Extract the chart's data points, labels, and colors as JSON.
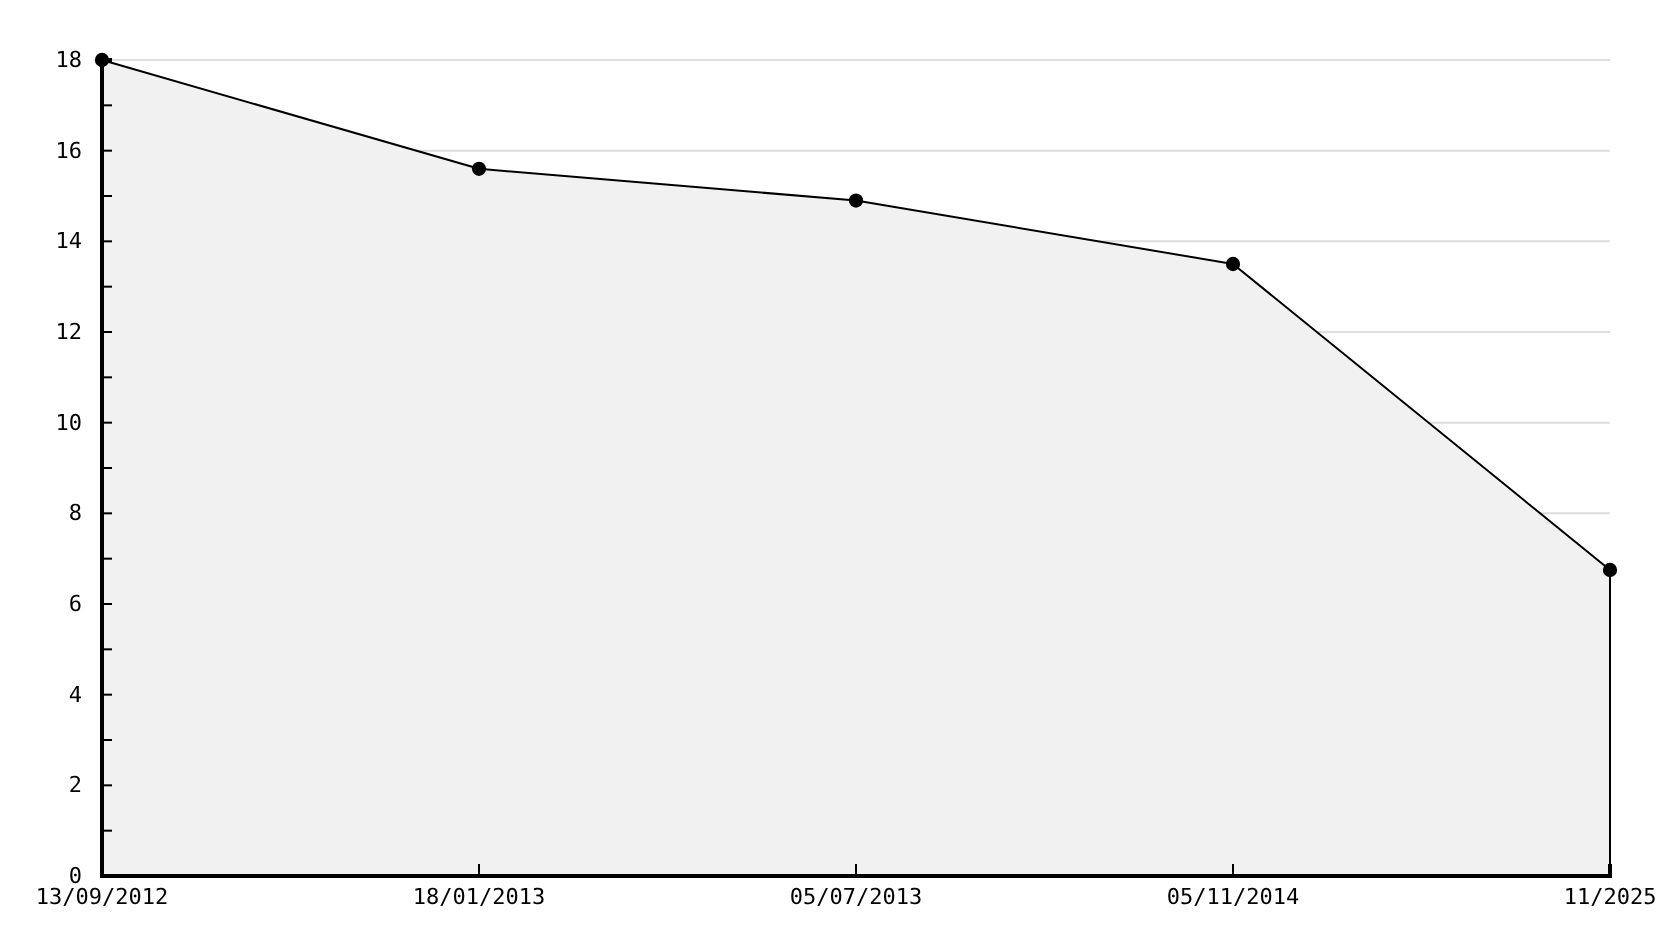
{
  "chart_data": {
    "type": "area",
    "categories": [
      "13/09/2012",
      "18/01/2013",
      "05/07/2013",
      "05/11/2014",
      "11/2025"
    ],
    "values": [
      18,
      15.6,
      14.9,
      13.5,
      6.75
    ],
    "color": "#f1f1f1",
    "ylim": [
      0,
      18
    ],
    "yticks": [
      0,
      {
        "value": 1,
        "label": null
      },
      2,
      {
        "value": 3,
        "label": null
      },
      4,
      {
        "value": 5,
        "label": null
      },
      6,
      {
        "value": 7,
        "label": null
      },
      8,
      {
        "value": 9,
        "label": null
      },
      10,
      {
        "value": 11,
        "label": null
      },
      12,
      {
        "value": 13,
        "label": null
      },
      14,
      {
        "value": 15,
        "label": null
      },
      16,
      {
        "value": 17,
        "label": null
      },
      18
    ],
    "grid": "y",
    "marker": "circle",
    "line_style": "solid"
  }
}
